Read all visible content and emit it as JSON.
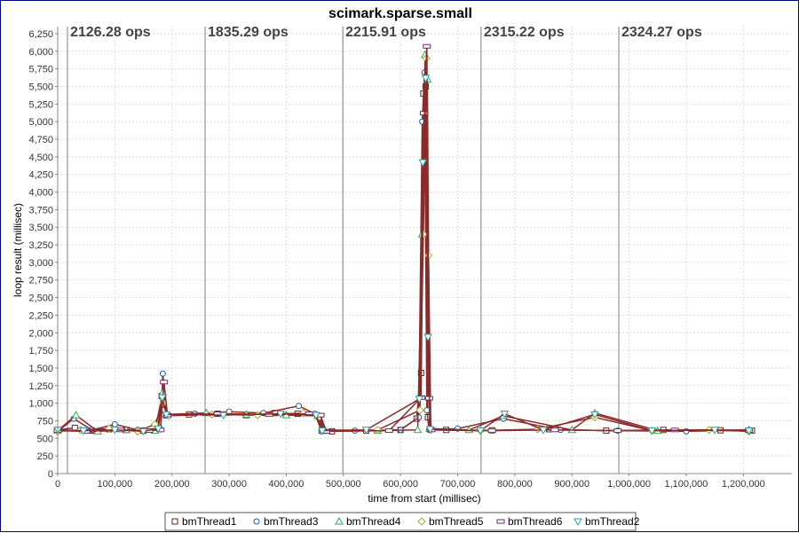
{
  "chart_data": {
    "type": "line",
    "title": "scimark.sparse.small",
    "xlabel": "time from start (millisec)",
    "ylabel": "loop result (millisec)",
    "xlim": [
      0,
      1285000
    ],
    "ylim": [
      0,
      6350
    ],
    "x_ticks": [
      0,
      100000,
      200000,
      300000,
      400000,
      500000,
      600000,
      700000,
      800000,
      900000,
      1000000,
      1100000,
      1200000
    ],
    "x_tick_labels": [
      "0",
      "100,000",
      "200,000",
      "300,000",
      "400,000",
      "500,000",
      "600,000",
      "700,000",
      "800,000",
      "900,000",
      "1,000,000",
      "1,100,000",
      "1,200,000"
    ],
    "y_ticks": [
      0,
      250,
      500,
      750,
      1000,
      1250,
      1500,
      1750,
      2000,
      2250,
      2500,
      2750,
      3000,
      3250,
      3500,
      3750,
      4000,
      4250,
      4500,
      4750,
      5000,
      5250,
      5500,
      5750,
      6000,
      6250
    ],
    "y_tick_labels": [
      "0",
      "250",
      "500",
      "750",
      "1,000",
      "1,250",
      "1,500",
      "1,750",
      "2,000",
      "2,250",
      "2,500",
      "2,750",
      "3,000",
      "3,250",
      "3,500",
      "3,750",
      "4,000",
      "4,250",
      "4,500",
      "4,750",
      "5,000",
      "5,250",
      "5,500",
      "5,750",
      "6,000",
      "6,250"
    ],
    "grid": true,
    "legend_position": "bottom",
    "phase_markers": [
      {
        "x": 17000,
        "label": "2126.28 ops"
      },
      {
        "x": 258000,
        "label": "1835.29 ops"
      },
      {
        "x": 499000,
        "label": "2215.91 ops"
      },
      {
        "x": 741000,
        "label": "2315.22 ops"
      },
      {
        "x": 982000,
        "label": "2324.27 ops"
      }
    ],
    "phase_line_color": "#808080",
    "series": [
      {
        "name": "bmThread1",
        "marker": "square",
        "color": "#5a2a1a",
        "x": [
          0,
          30000,
          60000,
          90000,
          120000,
          150000,
          175000,
          182000,
          186000,
          190000,
          230000,
          280000,
          330000,
          380000,
          420000,
          455000,
          462000,
          480000,
          540000,
          600000,
          628000,
          636000,
          640000,
          644000,
          648000,
          652000,
          680000,
          760000,
          860000,
          960000,
          1060000,
          1160000,
          1215000
        ],
        "y": [
          620,
          650,
          610,
          630,
          620,
          610,
          640,
          1100,
          900,
          830,
          840,
          850,
          830,
          860,
          850,
          820,
          610,
          600,
          610,
          620,
          780,
          1430,
          5400,
          5500,
          800,
          630,
          620,
          615,
          630,
          610,
          620,
          615,
          610
        ]
      },
      {
        "name": "bmThread3",
        "marker": "circle",
        "color": "#2255aa",
        "x": [
          0,
          28000,
          60000,
          100000,
          140000,
          170000,
          180000,
          184000,
          190000,
          240000,
          300000,
          360000,
          422000,
          450000,
          462000,
          520000,
          600000,
          632000,
          638000,
          642000,
          646000,
          650000,
          700000,
          780000,
          880000,
          980000,
          1100000,
          1210000
        ],
        "y": [
          600,
          780,
          620,
          700,
          620,
          610,
          630,
          1420,
          820,
          850,
          880,
          860,
          960,
          850,
          600,
          610,
          620,
          800,
          5000,
          5700,
          900,
          620,
          640,
          780,
          620,
          610,
          600,
          620
        ]
      },
      {
        "name": "bmThread4",
        "marker": "triangle-up",
        "color": "#33aa55",
        "x": [
          0,
          32000,
          70000,
          120000,
          170000,
          184000,
          190000,
          260000,
          330000,
          400000,
          455000,
          465000,
          560000,
          630000,
          638000,
          643000,
          647000,
          651000,
          720000,
          780000,
          900000,
          940000,
          1050000,
          1210000
        ],
        "y": [
          610,
          830,
          600,
          620,
          610,
          1150,
          840,
          860,
          840,
          830,
          820,
          620,
          610,
          620,
          3400,
          5950,
          5600,
          640,
          620,
          820,
          620,
          860,
          610,
          620
        ]
      },
      {
        "name": "bmThread5",
        "marker": "diamond",
        "color": "#a8b020",
        "x": [
          0,
          40000,
          90000,
          140000,
          170000,
          185000,
          195000,
          270000,
          350000,
          430000,
          458000,
          468000,
          560000,
          634000,
          640000,
          645000,
          649000,
          653000,
          740000,
          840000,
          940000,
          1040000,
          1140000,
          1210000
        ],
        "y": [
          600,
          620,
          640,
          600,
          700,
          1000,
          820,
          840,
          830,
          860,
          810,
          610,
          620,
          900,
          3400,
          5900,
          3100,
          620,
          610,
          630,
          800,
          610,
          620,
          600
        ]
      },
      {
        "name": "bmThread6",
        "marker": "rect-h",
        "color": "#6a2a6a",
        "x": [
          0,
          50000,
          110000,
          160000,
          180000,
          186000,
          192000,
          280000,
          370000,
          440000,
          460000,
          470000,
          580000,
          636000,
          641000,
          646000,
          650000,
          654000,
          760000,
          870000,
          980000,
          1080000,
          1210000
        ],
        "y": [
          610,
          600,
          620,
          610,
          620,
          1300,
          830,
          850,
          840,
          850,
          830,
          600,
          610,
          1080,
          5120,
          6070,
          1070,
          620,
          610,
          620,
          610,
          620,
          610
        ]
      },
      {
        "name": "bmThread2",
        "marker": "triangle-down",
        "color": "#2aa0a0",
        "x": [
          0,
          45000,
          100000,
          150000,
          176000,
          183000,
          190000,
          290000,
          390000,
          452000,
          463000,
          540000,
          633000,
          639000,
          644000,
          648000,
          652000,
          740000,
          782000,
          850000,
          940000,
          1040000,
          1150000,
          1210000
        ],
        "y": [
          620,
          610,
          620,
          600,
          640,
          1080,
          840,
          830,
          850,
          830,
          610,
          620,
          1060,
          4420,
          5620,
          1940,
          630,
          610,
          850,
          620,
          840,
          610,
          620,
          610
        ]
      }
    ],
    "aggregate_line_color": "#8b2a2a"
  }
}
